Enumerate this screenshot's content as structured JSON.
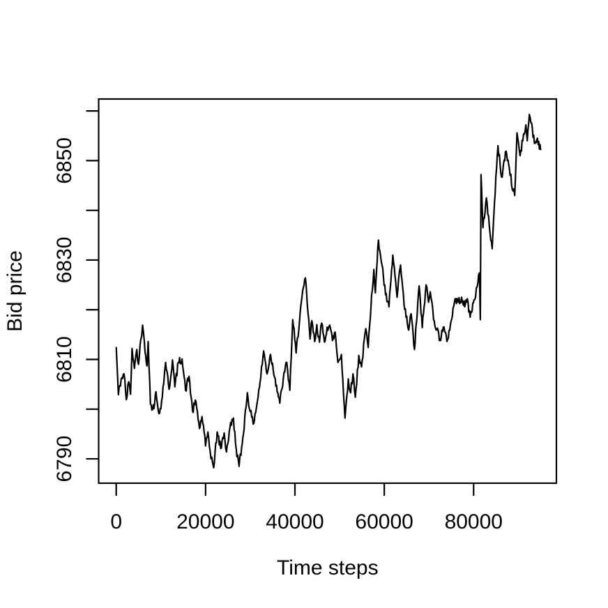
{
  "chart_data": {
    "type": "line",
    "title": "",
    "xlabel": "Time steps",
    "ylabel": "Bid price",
    "legend": null,
    "grid": false,
    "x_axis": {
      "ticks": [
        0,
        20000,
        40000,
        60000,
        80000
      ],
      "tick_labels": [
        "0",
        "20000",
        "40000",
        "60000",
        "80000"
      ],
      "range_usr": [
        -3933,
        98527
      ]
    },
    "y_axis": {
      "ticks": [
        6790,
        6800,
        6810,
        6820,
        6830,
        6840,
        6850,
        6860
      ],
      "labeled_ticks": [
        6790,
        6810,
        6830,
        6850
      ],
      "tick_labels": [
        "6790",
        "6810",
        "6830",
        "6850"
      ],
      "range_usr": [
        6785.1,
        6862.4
      ]
    },
    "style": {
      "line_color": "#000000",
      "axis_color": "#000000",
      "background": "#ffffff",
      "noise_amplitude": 0.85,
      "noise_step": 140,
      "seed": 42
    },
    "series": [
      {
        "name": "bid_price",
        "points": [
          [
            0,
            6812.5
          ],
          [
            480,
            6802.9
          ],
          [
            1100,
            6806.0
          ],
          [
            1750,
            6807.1
          ],
          [
            2270,
            6801.9
          ],
          [
            2800,
            6805.5
          ],
          [
            3200,
            6803.0
          ],
          [
            3550,
            6812.2
          ],
          [
            4070,
            6808.2
          ],
          [
            4600,
            6812.0
          ],
          [
            5000,
            6809.0
          ],
          [
            5500,
            6814.0
          ],
          [
            5900,
            6816.9
          ],
          [
            6300,
            6813.5
          ],
          [
            6900,
            6808.7
          ],
          [
            7150,
            6813.6
          ],
          [
            7670,
            6801.0
          ],
          [
            8450,
            6800.1
          ],
          [
            8900,
            6803.5
          ],
          [
            9400,
            6799.8
          ],
          [
            10000,
            6800.1
          ],
          [
            10790,
            6807.0
          ],
          [
            11050,
            6809.4
          ],
          [
            11830,
            6804.0
          ],
          [
            12600,
            6809.9
          ],
          [
            13120,
            6804.5
          ],
          [
            13900,
            6809.4
          ],
          [
            14740,
            6810.1
          ],
          [
            15520,
            6803.8
          ],
          [
            16300,
            6806.6
          ],
          [
            17080,
            6799.6
          ],
          [
            17860,
            6801.5
          ],
          [
            18640,
            6796.1
          ],
          [
            19200,
            6798.5
          ],
          [
            20000,
            6792.6
          ],
          [
            20520,
            6795.4
          ],
          [
            21040,
            6791.4
          ],
          [
            21560,
            6789.3
          ],
          [
            21820,
            6788.2
          ],
          [
            22600,
            6795.4
          ],
          [
            23380,
            6792.1
          ],
          [
            24160,
            6795.2
          ],
          [
            24680,
            6791.4
          ],
          [
            25450,
            6796.3
          ],
          [
            26230,
            6798.2
          ],
          [
            26700,
            6793.1
          ],
          [
            27500,
            6788.5
          ],
          [
            28200,
            6793.0
          ],
          [
            29350,
            6803.3
          ],
          [
            30000,
            6799.5
          ],
          [
            30650,
            6797.0
          ],
          [
            31500,
            6801.0
          ],
          [
            32200,
            6805.4
          ],
          [
            33000,
            6811.7
          ],
          [
            33760,
            6807.1
          ],
          [
            34540,
            6811.0
          ],
          [
            35580,
            6806.1
          ],
          [
            36620,
            6801.2
          ],
          [
            37400,
            6806.1
          ],
          [
            38180,
            6809.4
          ],
          [
            38855,
            6803.8
          ],
          [
            39500,
            6818.0
          ],
          [
            40265,
            6811.3
          ],
          [
            41300,
            6820.6
          ],
          [
            42340,
            6826.4
          ],
          [
            43380,
            6814.1
          ],
          [
            43800,
            6817.8
          ],
          [
            44420,
            6813.6
          ],
          [
            44900,
            6817.0
          ],
          [
            45500,
            6813.5
          ],
          [
            45980,
            6817.3
          ],
          [
            46600,
            6813.5
          ],
          [
            47200,
            6816.5
          ],
          [
            47800,
            6816.9
          ],
          [
            48400,
            6813.8
          ],
          [
            49000,
            6815.5
          ],
          [
            49620,
            6809.4
          ],
          [
            50400,
            6811.0
          ],
          [
            51200,
            6798.2
          ],
          [
            51950,
            6806.1
          ],
          [
            52470,
            6803.3
          ],
          [
            52990,
            6807.1
          ],
          [
            53510,
            6802.4
          ],
          [
            54290,
            6810.8
          ],
          [
            54900,
            6808.5
          ],
          [
            55850,
            6816.2
          ],
          [
            56400,
            6812.4
          ],
          [
            57150,
            6822.9
          ],
          [
            57670,
            6828.1
          ],
          [
            58000,
            6823.4
          ],
          [
            58700,
            6834.0
          ],
          [
            59490,
            6829.0
          ],
          [
            60270,
            6823.0
          ],
          [
            61050,
            6820.6
          ],
          [
            61920,
            6831.0
          ],
          [
            62860,
            6822.5
          ],
          [
            63640,
            6829.0
          ],
          [
            64420,
            6821.0
          ],
          [
            65460,
            6815.9
          ],
          [
            66000,
            6819.2
          ],
          [
            66760,
            6812.0
          ],
          [
            67800,
            6824.8
          ],
          [
            68500,
            6816.4
          ],
          [
            69350,
            6825.0
          ],
          [
            69900,
            6821.5
          ],
          [
            70300,
            6823.6
          ],
          [
            71170,
            6817.8
          ],
          [
            72470,
            6814.1
          ],
          [
            73200,
            6816.5
          ],
          [
            74030,
            6813.6
          ],
          [
            74800,
            6817.0
          ],
          [
            75850,
            6822.2
          ],
          [
            76600,
            6821.5
          ],
          [
            77300,
            6822.5
          ],
          [
            78000,
            6820.6
          ],
          [
            78600,
            6822.2
          ],
          [
            79220,
            6818.5
          ],
          [
            80100,
            6822.0
          ],
          [
            80780,
            6824.6
          ],
          [
            81300,
            6827.4
          ],
          [
            81500,
            6818.0
          ],
          [
            81650,
            6847.2
          ],
          [
            82075,
            6836.5
          ],
          [
            82855,
            6842.5
          ],
          [
            83500,
            6837.0
          ],
          [
            84150,
            6832.3
          ],
          [
            84670,
            6841.6
          ],
          [
            85450,
            6853.0
          ],
          [
            86230,
            6846.7
          ],
          [
            87270,
            6851.9
          ],
          [
            88000,
            6848.5
          ],
          [
            88830,
            6843.9
          ],
          [
            89190,
            6843.0
          ],
          [
            89710,
            6855.6
          ],
          [
            90400,
            6851.0
          ],
          [
            91000,
            6854.0
          ],
          [
            91685,
            6857.2
          ],
          [
            92000,
            6854.0
          ],
          [
            92465,
            6859.3
          ],
          [
            93000,
            6857.5
          ],
          [
            93600,
            6853.5
          ],
          [
            94300,
            6854.5
          ],
          [
            95000,
            6852.1
          ]
        ]
      }
    ]
  }
}
